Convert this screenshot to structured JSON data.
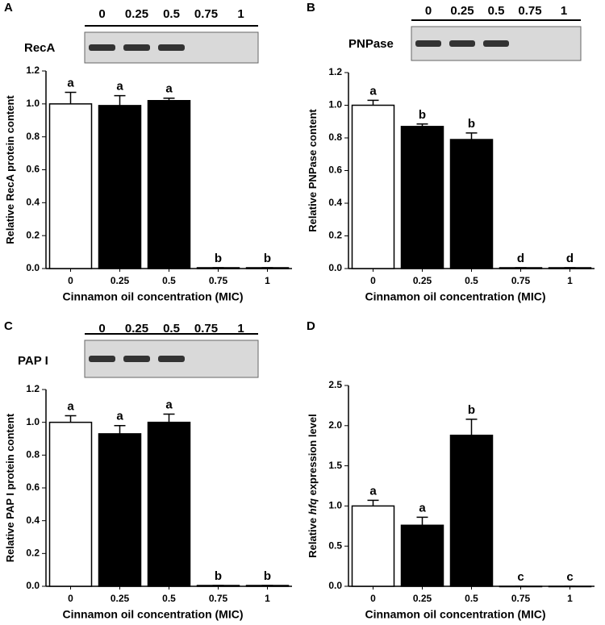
{
  "chart_data": [
    {
      "type": "bar",
      "panel": "A",
      "blot_label": "RecA",
      "blot_lanes": [
        "0",
        "0.25",
        "0.5",
        "0.75",
        "1"
      ],
      "ylabel": [
        {
          "text": "Relative RecA protein content",
          "italic": false
        }
      ],
      "xlabel": "Cinnamon oil concentration (MIC)",
      "categories": [
        "0",
        "0.25",
        "0.5",
        "0.75",
        "1"
      ],
      "values": [
        1.0,
        0.99,
        1.02,
        0.005,
        0.005
      ],
      "errors": [
        0.07,
        0.06,
        0.015,
        0,
        0
      ],
      "letters": [
        "a",
        "a",
        "a",
        "b",
        "b"
      ],
      "colors": [
        "#ffffff",
        "#000000",
        "#000000",
        "#000000",
        "#000000"
      ],
      "ylim": [
        0,
        1.2
      ],
      "yticks": [
        {
          "value": 0,
          "label": "0.0"
        },
        0.2,
        0.4,
        0.6,
        0.8,
        {
          "value": 1,
          "label": "1.0"
        },
        1.2
      ]
    },
    {
      "type": "bar",
      "panel": "B",
      "blot_label": "PNPase",
      "blot_lanes": [
        "0",
        "0.25",
        "0.5",
        "0.75",
        "1"
      ],
      "ylabel": [
        {
          "text": "Relative PNPase content",
          "italic": false
        }
      ],
      "xlabel": "Cinnamon oil concentration (MIC)",
      "categories": [
        "0",
        "0.25",
        "0.5",
        "0.75",
        "1"
      ],
      "values": [
        1.0,
        0.87,
        0.79,
        0.005,
        0.005
      ],
      "errors": [
        0.03,
        0.015,
        0.04,
        0,
        0
      ],
      "letters": [
        "a",
        "b",
        "b",
        "d",
        "d"
      ],
      "colors": [
        "#ffffff",
        "#000000",
        "#000000",
        "#000000",
        "#000000"
      ],
      "ylim": [
        0,
        1.2
      ],
      "yticks": [
        {
          "value": 0,
          "label": "0.0"
        },
        0.2,
        0.4,
        0.6,
        0.8,
        {
          "value": 1,
          "label": "1.0"
        },
        1.2
      ]
    },
    {
      "type": "bar",
      "panel": "C",
      "blot_label": "PAP I",
      "blot_lanes": [
        "0",
        "0.25",
        "0.5",
        "0.75",
        "1"
      ],
      "ylabel": [
        {
          "text": "Relative PAP I protein content",
          "italic": false
        }
      ],
      "xlabel": "Cinnamon oil concentration (MIC)",
      "categories": [
        "0",
        "0.25",
        "0.5",
        "0.75",
        "1"
      ],
      "values": [
        1.0,
        0.93,
        1.0,
        0.005,
        0.005
      ],
      "errors": [
        0.04,
        0.05,
        0.05,
        0,
        0
      ],
      "letters": [
        "a",
        "a",
        "a",
        "b",
        "b"
      ],
      "colors": [
        "#ffffff",
        "#000000",
        "#000000",
        "#000000",
        "#000000"
      ],
      "ylim": [
        0,
        1.2
      ],
      "yticks": [
        {
          "value": 0,
          "label": "0.0"
        },
        0.2,
        0.4,
        0.6,
        0.8,
        {
          "value": 1,
          "label": "1.0"
        },
        1.2
      ]
    },
    {
      "type": "bar",
      "panel": "D",
      "ylabel": [
        {
          "text": "Relative ",
          "italic": false
        },
        {
          "text": "hfq",
          "italic": true
        },
        {
          "text": " expression level",
          "italic": false
        }
      ],
      "xlabel": "Cinnamon oil concentration (MIC)",
      "categories": [
        "0",
        "0.25",
        "0.5",
        "0.75",
        "1"
      ],
      "values": [
        1.0,
        0.76,
        1.88,
        0,
        0
      ],
      "errors": [
        0.07,
        0.1,
        0.2,
        0,
        0
      ],
      "letters": [
        "a",
        "a",
        "b",
        "c",
        "c"
      ],
      "colors": [
        "#ffffff",
        "#000000",
        "#000000",
        "#000000",
        "#000000"
      ],
      "ylim": [
        0,
        2.5
      ],
      "yticks": [
        {
          "value": 0,
          "label": "0.0"
        },
        0.5,
        {
          "value": 1,
          "label": "1.0"
        },
        1.5,
        {
          "value": 2,
          "label": "2.0"
        },
        2.5
      ]
    }
  ]
}
